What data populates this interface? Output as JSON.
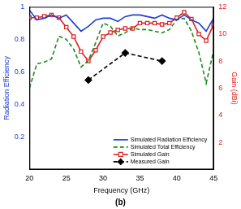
{
  "chart_data": {
    "type": "line",
    "title": "(b)",
    "x_label": "Frequency (GHz)",
    "y_label": "Radiation Efficiency",
    "y2_label": "Gain (dBi)",
    "xlim": [
      20,
      45
    ],
    "xticks": [
      20,
      25,
      30,
      35,
      40,
      45
    ],
    "ylim": [
      0,
      1
    ],
    "yticks": [
      0.2,
      0.4,
      0.6,
      0.8,
      1
    ],
    "y2lim": [
      0,
      12
    ],
    "y2ticks": [
      2,
      4,
      6,
      8,
      10,
      12
    ],
    "grid": false,
    "legend": "lower right",
    "series": [
      {
        "name": "Simulated Radiation Efficiency",
        "color": "#1f3fd0",
        "line_style": "solid",
        "marker": "none",
        "x": [
          20,
          21,
          22,
          23,
          24,
          25,
          26,
          27,
          28,
          29,
          30,
          31,
          32,
          33,
          34,
          35,
          36,
          37,
          38,
          39,
          40,
          41,
          42,
          43,
          44,
          45
        ],
        "values": [
          0.98,
          0.92,
          0.93,
          0.95,
          0.93,
          0.95,
          0.9,
          0.85,
          0.88,
          0.92,
          0.93,
          0.93,
          0.91,
          0.94,
          0.95,
          0.95,
          0.94,
          0.93,
          0.95,
          0.93,
          0.92,
          0.95,
          0.92,
          0.9,
          0.85,
          0.93
        ]
      },
      {
        "name": "Simulated Total Efficiency",
        "color": "#1a8a1a",
        "line_style": "dashed",
        "marker": "none",
        "x": [
          20,
          21,
          22,
          23,
          24,
          25,
          26,
          27,
          28,
          29,
          30,
          31,
          32,
          33,
          34,
          35,
          36,
          37,
          38,
          39,
          40,
          41,
          42,
          43,
          44,
          45
        ],
        "values": [
          0.5,
          0.65,
          0.66,
          0.68,
          0.82,
          0.8,
          0.74,
          0.63,
          0.67,
          0.78,
          0.9,
          0.88,
          0.82,
          0.84,
          0.87,
          0.86,
          0.86,
          0.85,
          0.84,
          0.86,
          0.92,
          0.93,
          0.85,
          0.72,
          0.53,
          0.73
        ]
      },
      {
        "name": "Simulated Gain",
        "color": "#e02020",
        "line_style": "solid",
        "marker": "square",
        "axis": "y2",
        "x": [
          20,
          21,
          22,
          23,
          24,
          25,
          26,
          27,
          28,
          29,
          30,
          31,
          32,
          33,
          34,
          35,
          36,
          37,
          38,
          39,
          40,
          41,
          42,
          43,
          44,
          45
        ],
        "values": [
          11.2,
          11.2,
          11.3,
          11.4,
          11.2,
          10.5,
          9.8,
          8.7,
          8.0,
          8.8,
          9.8,
          10.1,
          10.3,
          10.4,
          10.4,
          10.8,
          10.8,
          10.8,
          10.7,
          10.8,
          11.2,
          11.6,
          11.1,
          10.0,
          9.5,
          10.7
        ]
      },
      {
        "name": "Measured Gain",
        "color": "#000000",
        "line_style": "dashed",
        "marker": "diamond",
        "axis": "y2",
        "x": [
          28,
          33,
          38
        ],
        "values": [
          6.6,
          8.6,
          8.0
        ]
      }
    ]
  }
}
